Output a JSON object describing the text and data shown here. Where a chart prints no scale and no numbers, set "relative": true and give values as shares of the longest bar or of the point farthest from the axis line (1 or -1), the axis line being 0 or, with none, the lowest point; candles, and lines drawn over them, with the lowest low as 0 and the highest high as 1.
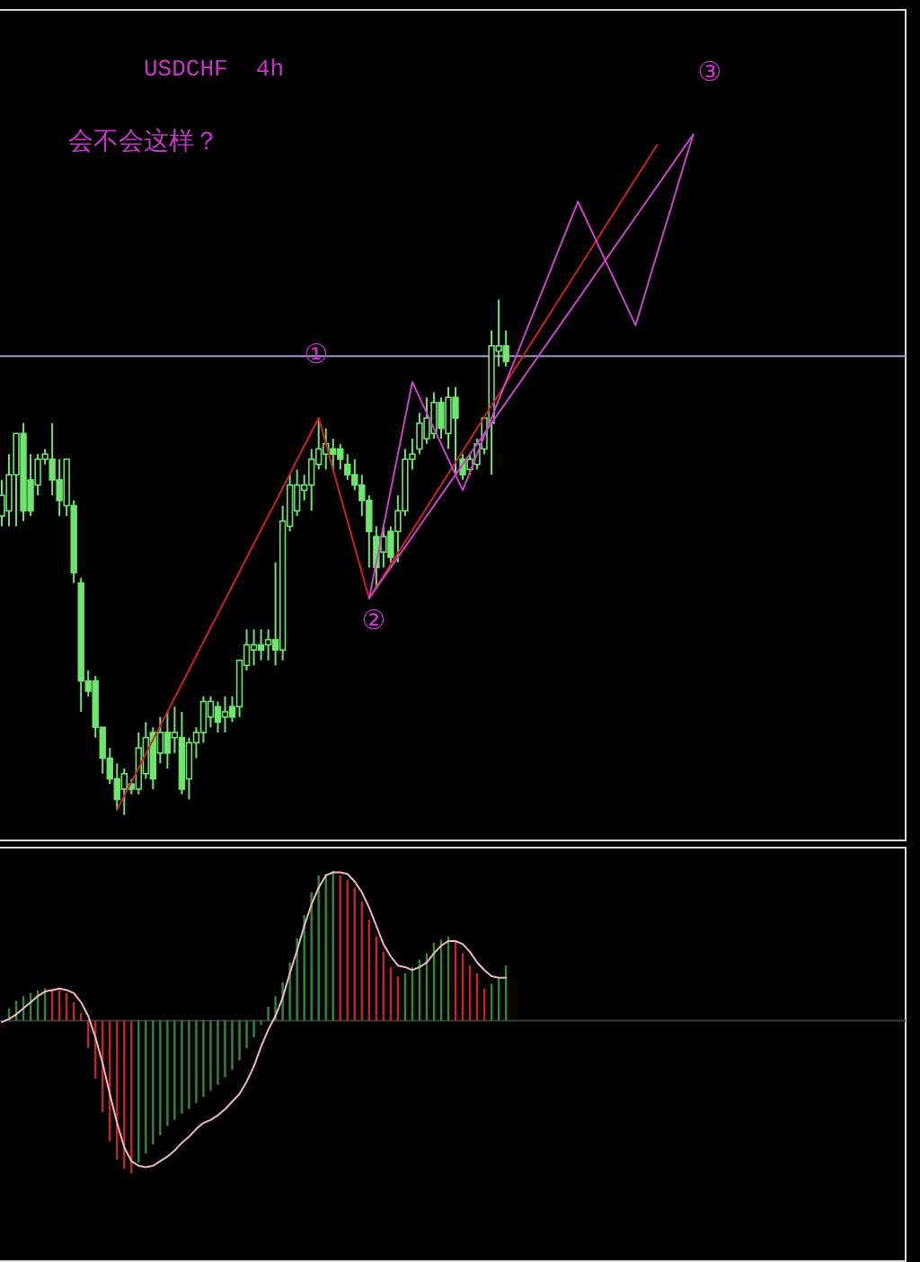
{
  "chart_data": [
    {
      "type": "candlestick",
      "title": "USDCHF  4h",
      "relative": true,
      "color": "#6ee66e",
      "annotations": [
        "会不会这样？",
        "①",
        "②",
        "③"
      ],
      "categories": [
        null,
        null,
        null,
        null,
        null,
        null,
        null,
        null,
        null,
        null,
        null,
        null,
        null,
        null,
        null,
        null,
        null,
        null,
        null,
        null,
        null,
        null,
        null,
        null,
        null,
        null,
        null,
        null,
        null,
        null,
        null,
        null,
        null,
        null,
        null,
        null,
        null,
        null,
        null,
        null,
        null,
        null,
        null,
        null,
        null,
        null,
        null,
        null,
        null,
        null,
        null,
        null,
        null,
        null,
        null,
        null,
        null,
        null,
        null,
        null,
        null,
        null,
        null,
        null,
        null,
        null,
        null,
        null,
        null,
        null,
        null,
        null,
        null,
        null,
        null,
        null,
        null,
        null,
        null,
        null,
        null,
        null,
        null,
        null,
        null,
        null,
        null,
        null,
        null,
        null,
        null,
        null,
        null,
        null,
        null,
        null,
        null,
        null,
        null,
        null,
        null,
        null,
        null,
        null,
        null,
        null,
        null,
        null,
        null,
        null,
        null,
        null,
        null,
        null,
        null,
        null,
        null,
        null,
        null,
        null,
        null,
        null,
        null,
        null,
        null,
        null
      ],
      "ohlc": [
        [
          0.58,
          0.65,
          0.56,
          0.62
        ],
        [
          0.59,
          0.7,
          0.56,
          0.66
        ],
        [
          0.66,
          0.74,
          0.56,
          0.74
        ],
        [
          0.74,
          0.76,
          0.57,
          0.59
        ],
        [
          0.65,
          0.7,
          0.58,
          0.59
        ],
        [
          0.64,
          0.7,
          0.62,
          0.69
        ],
        [
          0.69,
          0.71,
          0.68,
          0.7
        ],
        [
          0.69,
          0.76,
          0.62,
          0.65
        ],
        [
          0.65,
          0.69,
          0.58,
          0.61
        ],
        [
          0.6,
          0.69,
          0.58,
          0.69
        ],
        [
          0.6,
          0.61,
          0.45,
          0.47
        ],
        [
          0.45,
          0.46,
          0.2,
          0.26
        ],
        [
          0.26,
          0.28,
          0.23,
          0.24
        ],
        [
          0.26,
          0.27,
          0.15,
          0.17
        ],
        [
          0.17,
          0.17,
          0.08,
          0.11
        ],
        [
          0.11,
          0.13,
          0.06,
          0.07
        ],
        [
          0.07,
          0.1,
          0.01,
          0.03
        ],
        [
          0.05,
          0.09,
          0,
          0.08
        ],
        [
          0.06,
          0.07,
          0.04,
          0.05
        ],
        [
          0.05,
          0.16,
          0.04,
          0.13
        ],
        [
          0.08,
          0.18,
          0.07,
          0.15
        ],
        [
          0.16,
          0.17,
          0.05,
          0.07
        ],
        [
          0.12,
          0.19,
          0.1,
          0.16
        ],
        [
          0.16,
          0.2,
          0.09,
          0.12
        ],
        [
          0.15,
          0.21,
          0.12,
          0.16
        ],
        [
          0.15,
          0.2,
          0.04,
          0.05
        ],
        [
          0.07,
          0.15,
          0.03,
          0.14
        ],
        [
          0.14,
          0.17,
          0.11,
          0.16
        ],
        [
          0.16,
          0.23,
          0.14,
          0.22
        ],
        [
          0.19,
          0.23,
          0.17,
          0.22
        ],
        [
          0.21,
          0.22,
          0.16,
          0.18
        ],
        [
          0.19,
          0.23,
          0.16,
          0.2
        ],
        [
          0.21,
          0.23,
          0.18,
          0.19
        ],
        [
          0.21,
          0.3,
          0.19,
          0.3
        ],
        [
          0.29,
          0.36,
          0.28,
          0.33
        ],
        [
          0.32,
          0.36,
          0.29,
          0.33
        ],
        [
          0.33,
          0.36,
          0.3,
          0.32
        ],
        [
          0.33,
          0.36,
          0.3,
          0.34
        ],
        [
          0.34,
          0.49,
          0.29,
          0.32
        ],
        [
          0.32,
          0.6,
          0.3,
          0.57
        ],
        [
          0.56,
          0.66,
          0.55,
          0.64
        ],
        [
          0.59,
          0.67,
          0.58,
          0.64
        ],
        [
          0.63,
          0.66,
          0.61,
          0.64
        ],
        [
          0.64,
          0.71,
          0.59,
          0.69
        ],
        [
          0.68,
          0.77,
          0.67,
          0.71
        ],
        [
          0.7,
          0.75,
          0.67,
          0.72
        ],
        [
          0.71,
          0.73,
          0.67,
          0.7
        ],
        [
          0.71,
          0.72,
          0.67,
          0.69
        ],
        [
          0.68,
          0.7,
          0.65,
          0.66
        ],
        [
          0.66,
          0.69,
          0.63,
          0.64
        ],
        [
          0.64,
          0.66,
          0.58,
          0.61
        ],
        [
          0.61,
          0.62,
          0.48,
          0.55
        ],
        [
          0.54,
          0.56,
          0.44,
          0.48
        ],
        [
          0.51,
          0.56,
          0.48,
          0.54
        ],
        [
          0.55,
          0.56,
          0.49,
          0.5
        ],
        [
          0.55,
          0.62,
          0.49,
          0.59
        ],
        [
          0.59,
          0.71,
          0.58,
          0.69
        ],
        [
          0.69,
          0.73,
          0.67,
          0.7
        ],
        [
          0.71,
          0.78,
          0.7,
          0.76
        ],
        [
          0.73,
          0.81,
          0.72,
          0.77
        ],
        [
          0.74,
          0.82,
          0.73,
          0.8
        ],
        [
          0.8,
          0.81,
          0.73,
          0.75
        ],
        [
          0.74,
          0.83,
          0.71,
          0.81
        ],
        [
          0.81,
          0.83,
          0.66,
          0.77
        ],
        [
          0.69,
          0.7,
          0.65,
          0.66
        ],
        [
          0.67,
          0.7,
          0.66,
          0.69
        ],
        [
          0.68,
          0.73,
          0.67,
          0.72
        ],
        [
          0.71,
          0.77,
          0.7,
          0.77
        ],
        [
          0.76,
          0.94,
          0.66,
          0.91
        ],
        [
          0.9,
          1,
          0.87,
          0.91
        ],
        [
          0.91,
          0.94,
          0.87,
          0.88
        ],
        null,
        null,
        null,
        null,
        null,
        null,
        null,
        null,
        null,
        null,
        null,
        null,
        null,
        null,
        null,
        null,
        null,
        null,
        null,
        null,
        null,
        null,
        null,
        null,
        null,
        null,
        null,
        null,
        null,
        null,
        null,
        null,
        null,
        null,
        null,
        null,
        null,
        null,
        null,
        null,
        null,
        null,
        null,
        null,
        null,
        null,
        null,
        null,
        null,
        null,
        null,
        null,
        null,
        null,
        null
      ],
      "series": [
        {
          "type": "line",
          "color": "#cc2222",
          "values": [
            null,
            null,
            null,
            null,
            null,
            null,
            null,
            null,
            null,
            null,
            null,
            null,
            null,
            null,
            null,
            null,
            0.01,
            0.037,
            0.064,
            0.091,
            0.119,
            0.146,
            0.173,
            0.2,
            0.227,
            0.254,
            0.281,
            0.309,
            0.336,
            0.363,
            0.39,
            0.417,
            0.444,
            0.471,
            0.499,
            0.526,
            0.553,
            0.58,
            0.607,
            0.634,
            0.661,
            0.689,
            0.716,
            0.743,
            0.77,
            0.72,
            0.67,
            0.62,
            0.57,
            0.52,
            0.47,
            0.42,
            0.442,
            0.464,
            0.486,
            0.508,
            0.53,
            0.552,
            0.574,
            0.596,
            0.618,
            0.64,
            0.662,
            0.684,
            0.706,
            0.728,
            0.75,
            0.772,
            0.794,
            0.816,
            0.838,
            0.86,
            0.882,
            0.904,
            0.926,
            0.948,
            0.97,
            0.992,
            1.014,
            1.036,
            1.058,
            1.08,
            1.102,
            1.124,
            1.146,
            1.168,
            1.19,
            1.212,
            1.234,
            1.256,
            1.278,
            1.3,
            null,
            null,
            null,
            null,
            null,
            null,
            null,
            null,
            null,
            null,
            null,
            null,
            null,
            null,
            null,
            null,
            null,
            null,
            null,
            null,
            null,
            null,
            null,
            null,
            null,
            null,
            null,
            null,
            null,
            null,
            null,
            null,
            null,
            null
          ]
        },
        {
          "type": "line",
          "color": "#cc44cc",
          "values": [
            null,
            null,
            null,
            null,
            null,
            null,
            null,
            null,
            null,
            null,
            null,
            null,
            null,
            null,
            null,
            null,
            null,
            null,
            null,
            null,
            null,
            null,
            null,
            null,
            null,
            null,
            null,
            null,
            null,
            null,
            null,
            null,
            null,
            null,
            null,
            null,
            null,
            null,
            null,
            null,
            null,
            null,
            null,
            null,
            null,
            null,
            null,
            null,
            null,
            null,
            null,
            0.42,
            0.44,
            0.46,
            0.48,
            0.5,
            0.52,
            0.54,
            0.56,
            0.58,
            0.6,
            0.62,
            0.64,
            0.66,
            0.68,
            0.7,
            0.72,
            0.74,
            0.76,
            0.78,
            0.8,
            0.82,
            0.84,
            0.86,
            0.88,
            0.9,
            0.92,
            0.94,
            0.96,
            0.98,
            1,
            1.02,
            1.04,
            1.06,
            1.08,
            1.1,
            1.12,
            1.14,
            1.16,
            1.18,
            1.2,
            1.22,
            1.24,
            1.26,
            1.28,
            1.3,
            1.32,
            null,
            null,
            null,
            null,
            null,
            null,
            null,
            null,
            null,
            null,
            null,
            null,
            null,
            null,
            null,
            null,
            null,
            null,
            null,
            null,
            null,
            null,
            null,
            null,
            null,
            null,
            null,
            null,
            null
          ]
        },
        {
          "type": "line",
          "color": "#cc44cc",
          "values": [
            null,
            null,
            null,
            null,
            null,
            null,
            null,
            null,
            null,
            null,
            null,
            null,
            null,
            null,
            null,
            null,
            null,
            null,
            null,
            null,
            null,
            null,
            null,
            null,
            null,
            null,
            null,
            null,
            null,
            null,
            null,
            null,
            null,
            null,
            null,
            null,
            null,
            null,
            null,
            null,
            null,
            null,
            null,
            null,
            null,
            null,
            null,
            null,
            null,
            null,
            null,
            0.42,
            0.49,
            0.56,
            0.63,
            0.7,
            0.77,
            0.84,
            0.81,
            0.78,
            0.75,
            0.72,
            0.69,
            0.66,
            0.63,
            0.665,
            0.7,
            0.735,
            0.77,
            0.805,
            0.84,
            0.875,
            0.91,
            0.945,
            0.98,
            1.015,
            1.05,
            1.085,
            1.12,
            1.155,
            1.19,
            1.16,
            1.13,
            1.1,
            1.07,
            1.04,
            1.01,
            0.98,
            0.95,
            0.996,
            1.043,
            1.089,
            1.135,
            1.181,
            1.228,
            1.274,
            1.32,
            null,
            null,
            null,
            null,
            null,
            null,
            null,
            null,
            null,
            null,
            null,
            null,
            null,
            null,
            null,
            null,
            null,
            null,
            null,
            null,
            null,
            null,
            null,
            null,
            null,
            null,
            null,
            null,
            null
          ]
        }
      ],
      "ref_lines": [
        {
          "axis": "y",
          "value": 0.89,
          "color": "#9a9ad8"
        }
      ]
    },
    {
      "type": "bar",
      "relative": true,
      "categories": [
        null,
        null,
        null,
        null,
        null,
        null,
        null,
        null,
        null,
        null,
        null,
        null,
        null,
        null,
        null,
        null,
        null,
        null,
        null,
        null,
        null,
        null,
        null,
        null,
        null,
        null,
        null,
        null,
        null,
        null,
        null,
        null,
        null,
        null,
        null,
        null,
        null,
        null,
        null,
        null,
        null,
        null,
        null,
        null,
        null,
        null,
        null,
        null,
        null,
        null,
        null,
        null,
        null,
        null,
        null,
        null,
        null,
        null,
        null,
        null,
        null,
        null,
        null,
        null,
        null,
        null,
        null,
        null,
        null,
        null,
        null,
        null,
        null,
        null,
        null,
        null,
        null,
        null,
        null,
        null,
        null,
        null,
        null,
        null,
        null,
        null,
        null,
        null,
        null,
        null,
        null,
        null,
        null,
        null,
        null,
        null,
        null,
        null,
        null,
        null,
        null,
        null,
        null,
        null,
        null,
        null,
        null,
        null,
        null,
        null,
        null,
        null,
        null,
        null,
        null,
        null,
        null,
        null,
        null,
        null,
        null,
        null,
        null,
        null,
        null,
        null
      ],
      "series": [
        {
          "type": "bar",
          "values": [
            null,
            0.08,
            0.13,
            0.16,
            0.18,
            0.2,
            0.21,
            0.2,
            0.2,
            0.18,
            0.12,
            0.05,
            -0.18,
            -0.38,
            -0.6,
            -0.79,
            -0.91,
            -0.97,
            -1,
            -0.93,
            -0.87,
            -0.81,
            -0.75,
            -0.69,
            -0.65,
            -0.61,
            -0.58,
            -0.54,
            -0.5,
            -0.46,
            -0.42,
            -0.37,
            -0.32,
            -0.26,
            -0.18,
            -0.11,
            -0.03,
            0.09,
            0.16,
            0.25,
            0.38,
            0.54,
            0.69,
            0.84,
            0.95,
            0.96,
            0.98,
            0.95,
            0.92,
            0.87,
            0.78,
            0.66,
            0.55,
            0.45,
            0.35,
            0.29,
            0.31,
            0.35,
            0.4,
            0.44,
            0.51,
            0.53,
            0.55,
            0.52,
            0.44,
            0.36,
            0.31,
            0.21,
            0.24,
            0.28,
            0.36,
            null,
            null,
            null,
            null,
            null,
            null,
            null,
            null,
            null,
            null,
            null,
            null,
            null,
            null,
            null,
            null,
            null,
            null,
            null,
            null,
            null,
            null,
            null,
            null,
            null,
            null,
            null,
            null,
            null,
            null,
            null,
            null,
            null,
            null,
            null,
            null,
            null,
            null,
            null,
            null,
            null,
            null,
            null,
            null,
            null,
            null,
            null,
            null,
            null,
            null,
            null,
            null,
            null,
            null,
            null
          ],
          "colors": [
            null,
            "#2e8b2e",
            "#2e8b2e",
            "#2e8b2e",
            "#2e8b2e",
            "#2e8b2e",
            "#2e8b2e",
            "#cc2222",
            "#cc2222",
            "#cc2222",
            "#cc2222",
            "#cc2222",
            "#cc2222",
            "#cc2222",
            "#cc2222",
            "#cc2222",
            "#cc2222",
            "#cc2222",
            "#cc2222",
            "#2e8b2e",
            "#2e8b2e",
            "#2e8b2e",
            "#2e8b2e",
            "#2e8b2e",
            "#2e8b2e",
            "#2e8b2e",
            "#2e8b2e",
            "#2e8b2e",
            "#2e8b2e",
            "#2e8b2e",
            "#2e8b2e",
            "#2e8b2e",
            "#2e8b2e",
            "#2e8b2e",
            "#2e8b2e",
            "#2e8b2e",
            "#2e8b2e",
            "#2e8b2e",
            "#2e8b2e",
            "#2e8b2e",
            "#2e8b2e",
            "#2e8b2e",
            "#2e8b2e",
            "#2e8b2e",
            "#2e8b2e",
            "#2e8b2e",
            "#2e8b2e",
            "#cc2222",
            "#cc2222",
            "#cc2222",
            "#cc2222",
            "#cc2222",
            "#cc2222",
            "#cc2222",
            "#cc2222",
            "#cc2222",
            "#2e8b2e",
            "#2e8b2e",
            "#2e8b2e",
            "#2e8b2e",
            "#2e8b2e",
            "#2e8b2e",
            "#2e8b2e",
            "#cc2222",
            "#cc2222",
            "#cc2222",
            "#cc2222",
            "#cc2222",
            "#2e8b2e",
            "#2e8b2e",
            "#2e8b2e",
            null,
            null,
            null,
            null,
            null,
            null,
            null,
            null,
            null,
            null,
            null,
            null,
            null,
            null,
            null,
            null,
            null,
            null,
            null,
            null,
            null,
            null,
            null,
            null,
            null,
            null,
            null,
            null,
            null,
            null,
            null,
            null,
            null,
            null,
            null,
            null,
            null,
            null,
            null,
            null,
            null,
            null,
            null,
            null,
            null,
            null,
            null,
            null,
            null,
            null,
            null,
            null,
            null,
            null,
            null
          ]
        },
        {
          "type": "line",
          "color": "#f2b8c6",
          "values": [
            -0.01,
            0.01,
            0.04,
            0.08,
            0.12,
            0.16,
            0.19,
            0.2,
            0.21,
            0.2,
            0.18,
            0.12,
            0.03,
            -0.11,
            -0.28,
            -0.48,
            -0.67,
            -0.83,
            -0.92,
            -0.95,
            -0.96,
            -0.95,
            -0.92,
            -0.89,
            -0.85,
            -0.8,
            -0.76,
            -0.71,
            -0.67,
            -0.65,
            -0.62,
            -0.58,
            -0.53,
            -0.48,
            -0.4,
            -0.3,
            -0.17,
            -0.06,
            0.03,
            0.15,
            0.31,
            0.46,
            0.62,
            0.76,
            0.87,
            0.95,
            0.97,
            0.97,
            0.96,
            0.91,
            0.84,
            0.74,
            0.62,
            0.5,
            0.42,
            0.36,
            0.35,
            0.33,
            0.35,
            0.38,
            0.44,
            0.49,
            0.52,
            0.52,
            0.5,
            0.45,
            0.38,
            0.33,
            0.29,
            0.28,
            0.28,
            null,
            null,
            null,
            null,
            null,
            null,
            null,
            null,
            null,
            null,
            null,
            null,
            null,
            null,
            null,
            null,
            null,
            null,
            null,
            null,
            null,
            null,
            null,
            null,
            null,
            null,
            null,
            null,
            null,
            null,
            null,
            null,
            null,
            null,
            null,
            null,
            null,
            null,
            null,
            null,
            null,
            null,
            null,
            null,
            null,
            null,
            null,
            null,
            null,
            null,
            null,
            null,
            null,
            null,
            null
          ]
        }
      ]
    }
  ]
}
